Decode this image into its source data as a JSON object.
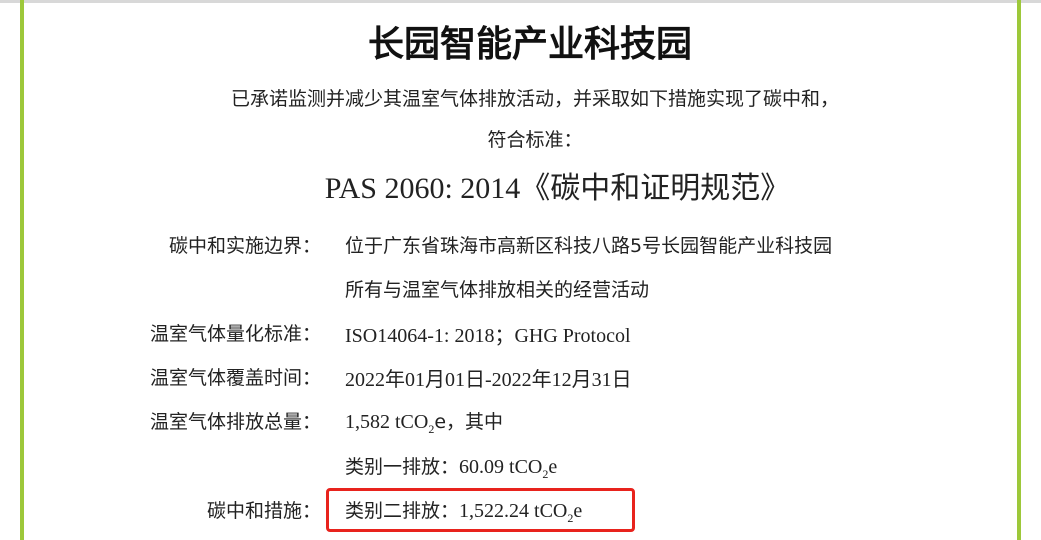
{
  "colors": {
    "border_green": "#9dc83a",
    "highlight_red": "#e8231d"
  },
  "title": "长园智能产业科技园",
  "intro_1": "已承诺监测并减少其温室气体排放活动，并采取如下措施实现了碳中和，",
  "intro_2": "符合标准：",
  "standard": "PAS 2060: 2014《碳中和证明规范》",
  "fields": [
    {
      "label": "碳中和实施边界：",
      "value": "位于广东省珠海市高新区科技八路5号长园智能产业科技园",
      "value2": "所有与温室气体排放相关的经营活动"
    },
    {
      "label": "温室气体量化标准：",
      "value": "ISO14064-1: 2018；GHG Protocol"
    },
    {
      "label": "温室气体覆盖时间：",
      "value": "2022年01月01日-2022年12月31日"
    },
    {
      "label": "温室气体排放总量：",
      "value_num": "1,582 tCO",
      "sub": "2",
      "value_tail": "e，其中"
    },
    {
      "label": "",
      "value_pre": "类别一排放：",
      "value_num": "60.09 tCO",
      "sub": "2",
      "value_tail": "e"
    },
    {
      "label": "碳中和措施：",
      "value_pre": "类别二排放：",
      "value_num": "1,522.24 tCO",
      "sub": "2",
      "value_tail": "e"
    }
  ]
}
